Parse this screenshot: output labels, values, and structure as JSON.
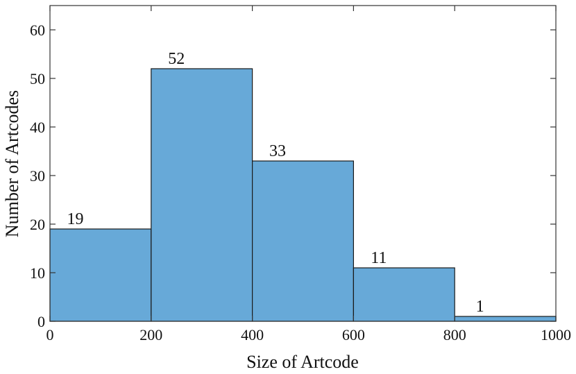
{
  "chart_data": {
    "type": "histogram",
    "bins": [
      {
        "x0": 0,
        "x1": 200,
        "value": 19
      },
      {
        "x0": 200,
        "x1": 400,
        "value": 52
      },
      {
        "x0": 400,
        "x1": 600,
        "value": 33
      },
      {
        "x0": 600,
        "x1": 800,
        "value": 11
      },
      {
        "x0": 800,
        "x1": 1000,
        "value": 1
      }
    ],
    "value_labels": [
      "19",
      "52",
      "33",
      "11",
      "1"
    ],
    "xlabel": "Size of Artcode",
    "ylabel": "Number of Artcodes",
    "xlim": [
      0,
      1000
    ],
    "ylim": [
      0,
      65
    ],
    "x_ticks": [
      0,
      200,
      400,
      600,
      800,
      1000
    ],
    "x_tick_labels": [
      "0",
      "200",
      "400",
      "600",
      "800",
      "1000"
    ],
    "y_ticks": [
      0,
      10,
      20,
      30,
      40,
      50,
      60
    ],
    "y_tick_labels": [
      "0",
      "10",
      "20",
      "30",
      "40",
      "50",
      "60"
    ],
    "grid": false,
    "bar_color": "#67a9d8",
    "edge_color": "#1a1a1a"
  }
}
